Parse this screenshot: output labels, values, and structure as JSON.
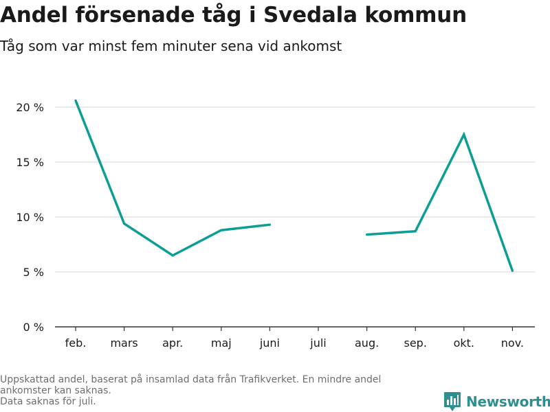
{
  "title": "Andel försenade tåg i Svedala kommun",
  "subtitle": "Tåg som var minst fem minuter sena vid ankomst",
  "notes": [
    "Uppskattad andel, baserat på insamlad data från Trafikverket. En mindre andel ankomster kan saknas.",
    "Data saknas för juli."
  ],
  "brand": {
    "name": "Newsworthy",
    "icon": "bar-chart-logo-icon",
    "color": "#2e8f8f"
  },
  "chart_data": {
    "type": "line",
    "categories": [
      "feb.",
      "mars",
      "apr.",
      "maj",
      "juni",
      "juli",
      "aug.",
      "sep.",
      "okt.",
      "nov."
    ],
    "series": [
      {
        "values": [
          20.6,
          9.4,
          6.5,
          8.8,
          9.3,
          null,
          8.4,
          8.7,
          17.5,
          5.1
        ],
        "color": "#0c9e94"
      }
    ],
    "yticks": [
      0,
      5,
      10,
      15,
      20
    ],
    "ytick_labels": [
      "0 %",
      "5 %",
      "10 %",
      "15 %",
      "20 %"
    ],
    "ylim": [
      0,
      21
    ],
    "grid": true,
    "xlabel": "",
    "ylabel": ""
  }
}
